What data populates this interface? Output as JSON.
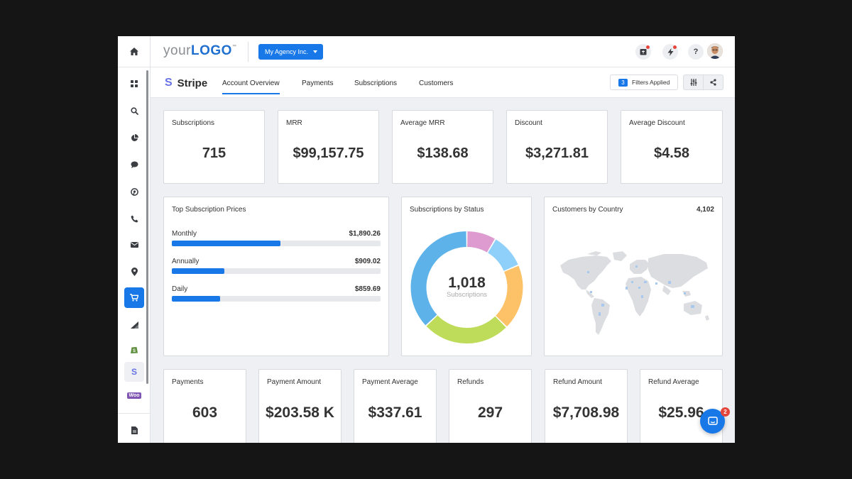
{
  "header": {
    "logo_prefix": "your",
    "logo_main": "LOGO",
    "logo_tm": "™",
    "agency_label": "My Agency Inc.",
    "icons": [
      "report-icon",
      "lightning-icon",
      "help-icon",
      "bell-icon"
    ],
    "help_glyph": "?"
  },
  "sidebar": {
    "items": [
      "home-icon",
      "dashboard-icon",
      "search-icon",
      "pie-chart-icon",
      "chat-icon",
      "pinterest-icon",
      "phone-icon",
      "mail-icon",
      "location-icon",
      "cart-icon",
      "signal-icon",
      "shopify-icon",
      "stripe-icon",
      "woo-icon",
      "document-icon"
    ],
    "active": "cart-icon",
    "stripe_glyph": "S",
    "woo_glyph": "Woo"
  },
  "subnav": {
    "brand_glyph": "S",
    "brand_name": "Stripe",
    "tabs": [
      "Account Overview",
      "Payments",
      "Subscriptions",
      "Customers"
    ],
    "active_tab": "Account Overview",
    "filters_count": "3",
    "filters_label": "Filters Applied"
  },
  "kpis_top": [
    {
      "label": "Subscriptions",
      "value": "715"
    },
    {
      "label": "MRR",
      "value": "$99,157.75"
    },
    {
      "label": "Average MRR",
      "value": "$138.68"
    },
    {
      "label": "Discount",
      "value": "$3,271.81"
    },
    {
      "label": "Average Discount",
      "value": "$4.58"
    }
  ],
  "top_prices": {
    "title": "Top Subscription Prices",
    "rows": [
      {
        "name": "Monthly",
        "value": "$1,890.26",
        "fraction": 0.52
      },
      {
        "name": "Annually",
        "value": "$909.02",
        "fraction": 0.25
      },
      {
        "name": "Daily",
        "value": "$859.69",
        "fraction": 0.23
      }
    ]
  },
  "status": {
    "title": "Subscriptions by Status",
    "total": "1,018",
    "total_label": "Subscriptions"
  },
  "chart_data": {
    "type": "pie",
    "categories": [
      "",
      "",
      "",
      "",
      ""
    ],
    "values": [
      0.085,
      0.1,
      0.19,
      0.255,
      0.37
    ],
    "colors": [
      "#dd9bd0",
      "#8fd0fa",
      "#fdc268",
      "#bedc5a",
      "#5db3e9"
    ],
    "title": "Subscriptions by Status",
    "donut": true
  },
  "country": {
    "title": "Customers by Country",
    "total": "4,102"
  },
  "kpis_bottom": [
    {
      "label": "Payments",
      "value": "603"
    },
    {
      "label": "Payment Amount",
      "value": "$203.58 K"
    },
    {
      "label": "Payment Average",
      "value": "$337.61"
    },
    {
      "label": "Refunds",
      "value": "297"
    },
    {
      "label": "Refund Amount",
      "value": "$7,708.98"
    },
    {
      "label": "Refund Average",
      "value": "$25.96"
    }
  ],
  "chat": {
    "badge": "2"
  },
  "colors": {
    "accent": "#1878e8",
    "stripe": "#6772e5",
    "alert": "#e5453a"
  }
}
